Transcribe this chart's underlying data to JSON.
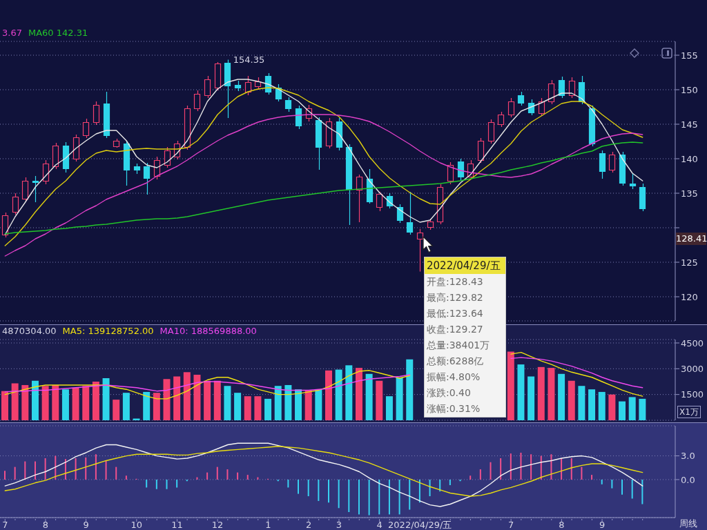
{
  "chart_data": [
    {
      "type": "candlestick",
      "categories": [
        null,
        null,
        null,
        null,
        null,
        null,
        null,
        null,
        null,
        null,
        null,
        null,
        null,
        null,
        null,
        null,
        null,
        null,
        null,
        null,
        null,
        null,
        null,
        null,
        null,
        null,
        null,
        null,
        null,
        null,
        null,
        null,
        null,
        null,
        null,
        null,
        null,
        null,
        null,
        null,
        null,
        null,
        null,
        null,
        null,
        null,
        null,
        null,
        null,
        null,
        null,
        null,
        null,
        null,
        null,
        null,
        null,
        null,
        null,
        null,
        null,
        null,
        null,
        null
      ],
      "ohlc": [
        [
          129.0,
          132.2,
          128.6,
          131.8
        ],
        [
          132.3,
          135.0,
          131.9,
          134.5
        ],
        [
          134.2,
          137.3,
          133.8,
          136.8
        ],
        [
          136.8,
          137.5,
          133.7,
          136.6
        ],
        [
          136.8,
          139.8,
          136.3,
          139.3
        ],
        [
          138.9,
          142.3,
          138.5,
          141.9
        ],
        [
          141.9,
          142.4,
          138.0,
          138.6
        ],
        [
          140.0,
          143.5,
          139.6,
          143.1
        ],
        [
          143.4,
          145.8,
          143.0,
          145.3
        ],
        [
          145.3,
          148.3,
          144.9,
          147.8
        ],
        [
          148.0,
          149.7,
          143.0,
          143.4
        ],
        [
          141.8,
          142.9,
          141.6,
          142.6
        ],
        [
          142.2,
          142.6,
          136.1,
          138.4
        ],
        [
          138.9,
          139.3,
          137.8,
          138.4
        ],
        [
          138.9,
          139.4,
          134.8,
          137.2
        ],
        [
          137.5,
          140.3,
          137.0,
          139.8
        ],
        [
          139.1,
          141.7,
          138.7,
          141.2
        ],
        [
          140.3,
          142.6,
          139.9,
          142.2
        ],
        [
          141.7,
          147.7,
          141.3,
          147.3
        ],
        [
          147.3,
          149.9,
          146.9,
          149.4
        ],
        [
          149.2,
          152.0,
          148.8,
          151.5
        ],
        [
          150.3,
          154.0,
          149.9,
          153.8
        ],
        [
          153.9,
          154.35,
          145.9,
          150.6
        ],
        [
          150.7,
          151.3,
          149.8,
          150.3
        ],
        [
          149.7,
          152.0,
          149.2,
          151.1
        ],
        [
          150.5,
          151.8,
          150.0,
          151.2
        ],
        [
          152.0,
          152.4,
          149.3,
          149.7
        ],
        [
          150.3,
          150.8,
          148.3,
          148.7
        ],
        [
          148.5,
          148.9,
          146.8,
          147.3
        ],
        [
          147.3,
          147.7,
          144.3,
          144.8
        ],
        [
          145.9,
          147.8,
          145.4,
          147.3
        ],
        [
          145.6,
          146.0,
          138.4,
          141.7
        ],
        [
          141.9,
          145.9,
          141.5,
          145.4
        ],
        [
          145.4,
          145.9,
          141.2,
          141.7
        ],
        [
          141.7,
          142.1,
          130.4,
          135.6
        ],
        [
          135.5,
          137.7,
          130.8,
          137.4
        ],
        [
          137.1,
          138.5,
          133.5,
          133.8
        ],
        [
          133.0,
          135.2,
          132.4,
          134.9
        ],
        [
          134.6,
          135.0,
          132.8,
          133.2
        ],
        [
          133.0,
          133.4,
          130.7,
          131.1
        ],
        [
          130.8,
          135.2,
          129.0,
          129.4
        ],
        [
          128.43,
          129.82,
          123.64,
          129.27
        ],
        [
          130.1,
          131.3,
          129.7,
          130.9
        ],
        [
          130.9,
          136.3,
          130.5,
          135.9
        ],
        [
          136.8,
          139.5,
          136.3,
          139.1
        ],
        [
          139.6,
          140.0,
          136.9,
          137.4
        ],
        [
          137.4,
          139.8,
          137.0,
          139.3
        ],
        [
          139.8,
          143.0,
          139.4,
          142.6
        ],
        [
          142.6,
          145.7,
          142.2,
          145.3
        ],
        [
          145.0,
          146.8,
          144.6,
          146.4
        ],
        [
          146.4,
          148.8,
          146.0,
          148.3
        ],
        [
          149.2,
          149.7,
          147.7,
          148.1
        ],
        [
          148.1,
          148.6,
          146.3,
          146.7
        ],
        [
          146.6,
          148.8,
          146.2,
          148.3
        ],
        [
          148.3,
          151.4,
          147.9,
          150.9
        ],
        [
          151.4,
          151.9,
          148.8,
          149.2
        ],
        [
          149.2,
          151.8,
          148.8,
          151.3
        ],
        [
          151.1,
          152.0,
          147.9,
          148.3
        ],
        [
          147.3,
          147.7,
          141.8,
          142.2
        ],
        [
          140.8,
          141.2,
          137.1,
          138.2
        ],
        [
          138.4,
          141.0,
          138.0,
          140.6
        ],
        [
          140.6,
          141.0,
          136.1,
          136.5
        ],
        [
          136.4,
          137.9,
          135.6,
          136.1
        ],
        [
          135.9,
          136.4,
          132.4,
          132.8
        ]
      ],
      "colors": [
        "#f2406e",
        "#f2406e",
        "#f2406e",
        "#2fd6ea",
        "#f2406e",
        "#f2406e",
        "#2fd6ea",
        "#f2406e",
        "#f2406e",
        "#f2406e",
        "#2fd6ea",
        "#f2406e",
        "#2fd6ea",
        "#2fd6ea",
        "#2fd6ea",
        "#f2406e",
        "#f2406e",
        "#f2406e",
        "#f2406e",
        "#f2406e",
        "#f2406e",
        "#f2406e",
        "#2fd6ea",
        "#2fd6ea",
        "#f2406e",
        "#f2406e",
        "#2fd6ea",
        "#2fd6ea",
        "#2fd6ea",
        "#2fd6ea",
        "#f2406e",
        "#2fd6ea",
        "#f2406e",
        "#2fd6ea",
        "#2fd6ea",
        "#f2406e",
        "#2fd6ea",
        "#f2406e",
        "#2fd6ea",
        "#2fd6ea",
        "#2fd6ea",
        "#f2406e",
        "#f2406e",
        "#f2406e",
        "#f2406e",
        "#2fd6ea",
        "#f2406e",
        "#f2406e",
        "#f2406e",
        "#f2406e",
        "#f2406e",
        "#2fd6ea",
        "#2fd6ea",
        "#f2406e",
        "#f2406e",
        "#2fd6ea",
        "#f2406e",
        "#2fd6ea",
        "#2fd6ea",
        "#2fd6ea",
        "#f2406e",
        "#2fd6ea",
        "#2fd6ea",
        "#2fd6ea"
      ],
      "value_labels": [
        null,
        null,
        null,
        null,
        null,
        null,
        null,
        null,
        null,
        null,
        null,
        null,
        null,
        null,
        null,
        null,
        null,
        null,
        null,
        null,
        null,
        null,
        "154.35",
        null,
        null,
        null,
        null,
        null,
        null,
        null,
        null,
        null,
        null,
        null,
        null,
        null,
        null,
        null,
        null,
        null,
        null,
        null,
        null,
        null,
        null,
        null,
        null,
        null,
        null,
        null,
        null,
        null,
        null,
        null,
        null,
        null,
        null,
        null,
        null,
        null,
        null,
        null,
        null,
        null
      ],
      "series": [
        {
          "type": "line",
          "color": "#e6e6e6",
          "values": [
            129.0,
            131.6,
            133.7,
            135.9,
            137.5,
            139.1,
            140.1,
            141.5,
            142.6,
            143.6,
            144.1,
            144.1,
            142.6,
            140.3,
            139.1,
            138.7,
            139.5,
            140.8,
            142.6,
            145.3,
            148.3,
            150.1,
            151.1,
            151.5,
            151.5,
            151.2,
            150.8,
            150.1,
            149.2,
            148.3,
            146.9,
            145.7,
            144.5,
            143.6,
            141.5,
            139.1,
            136.8,
            135.1,
            133.7,
            132.6,
            131.6,
            130.8,
            131.1,
            132.8,
            134.8,
            136.5,
            137.7,
            139.6,
            141.5,
            143.4,
            145.3,
            146.9,
            147.5,
            148.1,
            148.8,
            149.5,
            149.5,
            148.7,
            147.1,
            145.0,
            142.6,
            140.0,
            137.9,
            136.8
          ]
        },
        {
          "type": "line",
          "color": "#dccc10",
          "values": [
            127.4,
            128.7,
            130.4,
            132.3,
            134.0,
            135.6,
            136.8,
            138.4,
            139.8,
            140.8,
            141.2,
            141.0,
            141.2,
            141.4,
            141.5,
            141.4,
            141.4,
            141.4,
            141.6,
            142.6,
            144.3,
            146.4,
            147.8,
            149.0,
            149.7,
            150.1,
            150.3,
            150.2,
            149.7,
            149.2,
            148.3,
            147.6,
            147.0,
            146.1,
            144.5,
            142.6,
            140.3,
            138.6,
            137.2,
            136.1,
            135.1,
            134.2,
            133.5,
            133.4,
            134.7,
            135.9,
            137.0,
            138.2,
            139.3,
            140.8,
            142.2,
            144.0,
            145.3,
            146.2,
            147.1,
            148.0,
            148.3,
            148.3,
            147.6,
            146.4,
            145.3,
            144.2,
            143.7,
            143.1
          ]
        },
        {
          "type": "line",
          "name": "3.67",
          "color": "#e040c8",
          "values": [
            125.9,
            126.7,
            127.4,
            128.4,
            129.1,
            130.0,
            130.7,
            131.6,
            132.5,
            133.2,
            134.1,
            134.7,
            135.3,
            135.9,
            136.5,
            137.5,
            138.2,
            138.9,
            139.8,
            140.8,
            141.7,
            142.6,
            143.4,
            144.0,
            144.7,
            145.3,
            145.7,
            146.0,
            146.2,
            146.3,
            146.4,
            146.4,
            146.4,
            146.3,
            146.1,
            145.8,
            145.4,
            144.7,
            143.9,
            143.0,
            142.1,
            141.1,
            140.2,
            139.4,
            138.8,
            138.3,
            138.0,
            137.8,
            137.6,
            137.4,
            137.3,
            137.5,
            137.8,
            138.4,
            139.2,
            139.9,
            140.7,
            141.5,
            142.2,
            142.9,
            143.3,
            143.6,
            143.7,
            143.5
          ]
        },
        {
          "type": "line",
          "name": "MA60 142.31",
          "color": "#22c42a",
          "values": [
            129.1,
            129.3,
            129.4,
            129.5,
            129.6,
            129.8,
            129.9,
            130.1,
            130.2,
            130.4,
            130.5,
            130.7,
            130.9,
            131.1,
            131.2,
            131.3,
            131.3,
            131.4,
            131.6,
            131.9,
            132.2,
            132.5,
            132.8,
            133.1,
            133.4,
            133.7,
            134.0,
            134.2,
            134.4,
            134.6,
            134.8,
            135.0,
            135.2,
            135.4,
            135.5,
            135.6,
            135.7,
            135.8,
            135.9,
            136.0,
            136.1,
            136.2,
            136.3,
            136.4,
            136.6,
            136.8,
            137.1,
            137.4,
            137.7,
            138.0,
            138.4,
            138.7,
            139.0,
            139.4,
            139.7,
            140.1,
            140.4,
            140.8,
            141.1,
            141.8,
            142.1,
            142.3,
            142.4,
            142.3
          ]
        }
      ],
      "ylim": [
        116.5,
        157
      ],
      "yticks": [
        120,
        125,
        {
          "value": 130,
          "label": null
        },
        135,
        140,
        145,
        150,
        155
      ],
      "grid": "y",
      "legend": "top left",
      "tick_labels": "y",
      "annotations": [
        "128.41"
      ]
    },
    {
      "type": "bar",
      "categories": [
        null,
        null,
        null,
        null,
        null,
        null,
        null,
        null,
        null,
        null,
        null,
        null,
        null,
        null,
        null,
        null,
        null,
        null,
        null,
        null,
        null,
        null,
        null,
        null,
        null,
        null,
        null,
        null,
        null,
        null,
        null,
        null,
        null,
        null,
        null,
        null,
        null,
        null,
        null,
        null,
        null,
        null,
        null,
        null,
        null,
        null,
        null,
        null,
        null,
        null,
        null,
        null,
        null,
        null,
        null,
        null,
        null,
        null,
        null,
        null,
        null,
        null,
        null,
        null
      ],
      "series": [
        {
          "colors": [
            "#f2406e",
            "#f2406e",
            "#f2406e",
            "#2fd6ea",
            "#f2406e",
            "#f2406e",
            "#2fd6ea",
            "#f2406e",
            "#f2406e",
            "#f2406e",
            "#2fd6ea",
            "#f2406e",
            "#2fd6ea",
            "#2fd6ea",
            "#2fd6ea",
            "#f2406e",
            "#f2406e",
            "#f2406e",
            "#f2406e",
            "#f2406e",
            "#f2406e",
            "#f2406e",
            "#2fd6ea",
            "#2fd6ea",
            "#f2406e",
            "#f2406e",
            "#2fd6ea",
            "#2fd6ea",
            "#2fd6ea",
            "#2fd6ea",
            "#f2406e",
            "#2fd6ea",
            "#f2406e",
            "#2fd6ea",
            "#2fd6ea",
            "#f2406e",
            "#2fd6ea",
            "#f2406e",
            "#2fd6ea",
            "#2fd6ea",
            "#2fd6ea",
            null,
            null,
            null,
            null,
            null,
            null,
            null,
            null,
            null,
            "#f2406e",
            "#2fd6ea",
            "#2fd6ea",
            "#f2406e",
            "#f2406e",
            "#2fd6ea",
            "#f2406e",
            "#2fd6ea",
            "#2fd6ea",
            "#2fd6ea",
            "#f2406e",
            "#2fd6ea",
            "#2fd6ea",
            "#2fd6ea"
          ],
          "values": [
            1700,
            2150,
            2050,
            2300,
            2000,
            2050,
            1800,
            1900,
            2000,
            2250,
            2450,
            1200,
            1600,
            100,
            1650,
            1600,
            2400,
            2550,
            2800,
            2650,
            2300,
            2300,
            2000,
            1600,
            1400,
            1400,
            1250,
            2000,
            2050,
            1800,
            1750,
            1800,
            2900,
            2950,
            3200,
            3050,
            2700,
            2300,
            1400,
            2500,
            3550,
            null,
            null,
            null,
            null,
            null,
            null,
            null,
            null,
            null,
            4000,
            3250,
            2550,
            3100,
            3050,
            2700,
            2300,
            2000,
            1800,
            1650,
            1500,
            1100,
            1350,
            1250
          ]
        },
        {
          "type": "line",
          "name": "MA5: 139128752.00",
          "color": "#f0e010",
          "values": [
            1500,
            1650,
            1800,
            1950,
            2050,
            2050,
            2050,
            2050,
            2050,
            2050,
            2050,
            1900,
            1800,
            1600,
            1400,
            1250,
            1250,
            1450,
            1700,
            2050,
            2350,
            2500,
            2500,
            2300,
            2050,
            1800,
            1650,
            1500,
            1500,
            1550,
            1650,
            1750,
            1950,
            2250,
            2600,
            2850,
            2900,
            2750,
            2600,
            2450,
            2600,
            null,
            null,
            null,
            null,
            null,
            null,
            null,
            null,
            null,
            3850,
            3950,
            3700,
            3450,
            3250,
            3000,
            2800,
            2650,
            2500,
            2250,
            2000,
            1750,
            1550,
            1400
          ]
        },
        {
          "type": "line",
          "name": "MA10: 188569888.00",
          "color": "#f048f0",
          "values": [
            1650,
            1700,
            1700,
            1750,
            1750,
            1800,
            1850,
            1900,
            1950,
            2000,
            2050,
            2000,
            1950,
            1900,
            1800,
            1700,
            1750,
            1900,
            2050,
            2200,
            2250,
            2250,
            2200,
            2150,
            2100,
            2000,
            1900,
            1800,
            1750,
            1750,
            1750,
            1800,
            1850,
            2000,
            2150,
            2300,
            2400,
            2450,
            2500,
            2550,
            2650,
            null,
            null,
            null,
            null,
            null,
            null,
            null,
            null,
            null,
            3600,
            3650,
            3600,
            3550,
            3450,
            3300,
            3150,
            2950,
            2750,
            2500,
            2300,
            2150,
            2000,
            1900
          ]
        }
      ],
      "ylim": [
        0,
        4700
      ],
      "yticks": [
        1500,
        3000,
        4500
      ],
      "ylabel": "X1万",
      "grid": "y",
      "legend": "top left",
      "tick_labels": "y",
      "annotations": [
        "4870304.00"
      ]
    },
    {
      "type": "bar",
      "categories": [
        "7",
        null,
        null,
        null,
        "8",
        null,
        null,
        null,
        "9",
        null,
        null,
        null,
        null,
        "10",
        null,
        null,
        null,
        "11",
        null,
        null,
        null,
        "12",
        null,
        null,
        null,
        null,
        "1",
        null,
        null,
        null,
        "2",
        null,
        null,
        "3",
        null,
        null,
        null,
        "4",
        null,
        null,
        null,
        "2022/04/29/五",
        null,
        null,
        null,
        null,
        null,
        null,
        null,
        null,
        "7",
        null,
        null,
        null,
        null,
        "8",
        null,
        null,
        null,
        "9",
        null,
        null,
        null,
        null
      ],
      "series": [
        {
          "colors": [
            "#f0508c",
            "#f0508c",
            "#f0508c",
            "#f0508c",
            "#f0508c",
            "#f0508c",
            "#f0508c",
            "#f0508c",
            "#f0508c",
            "#f0508c",
            "#f0508c",
            "#f0508c",
            "#f0508c",
            "#f0508c",
            "#38d0f0",
            "#38d0f0",
            "#38d0f0",
            "#38d0f0",
            "#38d0f0",
            "#f0508c",
            "#f0508c",
            "#f0508c",
            "#f0508c",
            "#f0508c",
            "#f0508c",
            "#f0508c",
            "#f0508c",
            "#38d0f0",
            "#38d0f0",
            "#38d0f0",
            "#38d0f0",
            "#38d0f0",
            "#38d0f0",
            "#38d0f0",
            "#38d0f0",
            "#38d0f0",
            "#38d0f0",
            "#38d0f0",
            "#38d0f0",
            "#38d0f0",
            "#38d0f0",
            "#38d0f0",
            "#38d0f0",
            "#38d0f0",
            "#38d0f0",
            "#38d0f0",
            "#f0508c",
            "#f0508c",
            "#f0508c",
            "#f0508c",
            "#f0508c",
            "#f0508c",
            "#f0508c",
            "#f0508c",
            "#f0508c",
            "#f0508c",
            "#f0508c",
            "#f0508c",
            "#f0508c",
            "#38d0f0",
            "#38d0f0",
            "#38d0f0",
            "#38d0f0",
            "#38d0f0"
          ],
          "values": [
            1.1,
            1.6,
            2.3,
            2.3,
            2.7,
            3.0,
            2.6,
            2.7,
            2.8,
            3.2,
            2.4,
            1.6,
            0.5,
            0.1,
            -1.0,
            -1.2,
            -1.2,
            -1.0,
            -0.2,
            0.3,
            0.9,
            1.6,
            1.3,
            0.9,
            0.6,
            0.3,
            0.1,
            -0.2,
            -1.0,
            -1.8,
            -2.1,
            -2.7,
            -2.9,
            -3.6,
            -4.1,
            -4.4,
            -4.5,
            -4.4,
            -4.4,
            -4.4,
            -3.8,
            -2.9,
            -2.1,
            -1.5,
            -0.7,
            -0.2,
            0.5,
            1.3,
            2.2,
            2.7,
            3.3,
            3.4,
            3.2,
            3.0,
            3.2,
            2.7,
            2.7,
            1.6,
            0.6,
            -0.6,
            -1.1,
            -1.9,
            -2.4,
            -3.1
          ]
        },
        {
          "type": "line",
          "color": "#f4f4f4",
          "values": [
            -0.8,
            -0.4,
            0.1,
            0.6,
            1.0,
            1.6,
            2.2,
            2.9,
            3.4,
            4.0,
            4.4,
            4.4,
            4.1,
            3.8,
            3.4,
            3.0,
            2.8,
            2.6,
            2.7,
            3.0,
            3.4,
            3.9,
            4.4,
            4.6,
            4.6,
            4.6,
            4.6,
            4.3,
            4.0,
            3.5,
            3.0,
            2.5,
            2.2,
            1.9,
            1.5,
            1.0,
            0.2,
            -0.5,
            -1.0,
            -1.6,
            -2.1,
            -2.7,
            -3.2,
            -3.4,
            -3.1,
            -2.6,
            -2.1,
            -1.4,
            -0.5,
            0.5,
            1.2,
            1.6,
            1.9,
            2.2,
            2.4,
            2.7,
            2.9,
            3.0,
            2.8,
            2.2,
            1.6,
            0.9,
            0.1,
            -0.8
          ]
        },
        {
          "type": "line",
          "color": "#e8dc10",
          "values": [
            -1.4,
            -1.2,
            -0.8,
            -0.4,
            -0.1,
            0.4,
            0.8,
            1.2,
            1.6,
            2.0,
            2.4,
            2.7,
            3.0,
            3.2,
            3.2,
            3.2,
            3.2,
            3.1,
            3.1,
            3.3,
            3.4,
            3.6,
            3.7,
            3.8,
            3.9,
            4.0,
            4.1,
            4.2,
            4.1,
            4.0,
            3.8,
            3.6,
            3.4,
            3.1,
            2.8,
            2.5,
            2.1,
            1.6,
            1.1,
            0.6,
            0.1,
            -0.4,
            -0.9,
            -1.3,
            -1.7,
            -1.9,
            -2.1,
            -2.0,
            -1.7,
            -1.3,
            -1.0,
            -0.6,
            -0.2,
            0.3,
            0.7,
            1.1,
            1.5,
            1.8,
            2.0,
            2.0,
            1.8,
            1.5,
            1.2,
            0.9
          ]
        }
      ],
      "ylim": [
        -4.8,
        6.8
      ],
      "yticks": [
        {
          "value": 0,
          "label": "0.0"
        },
        {
          "value": 3,
          "label": "3.0"
        }
      ],
      "grid": "y",
      "annotations": [
        "周线"
      ]
    },
    {
      "type": "other",
      "title": "2022/04/29/五",
      "annotations": [
        "开盘:128.43",
        "最高:129.82",
        "最低:123.64",
        "收盘:129.27",
        "总量:38401万",
        "总额:6288亿",
        "振幅:4.80%",
        "涨跌:0.40",
        "涨幅:0.31%"
      ]
    }
  ]
}
